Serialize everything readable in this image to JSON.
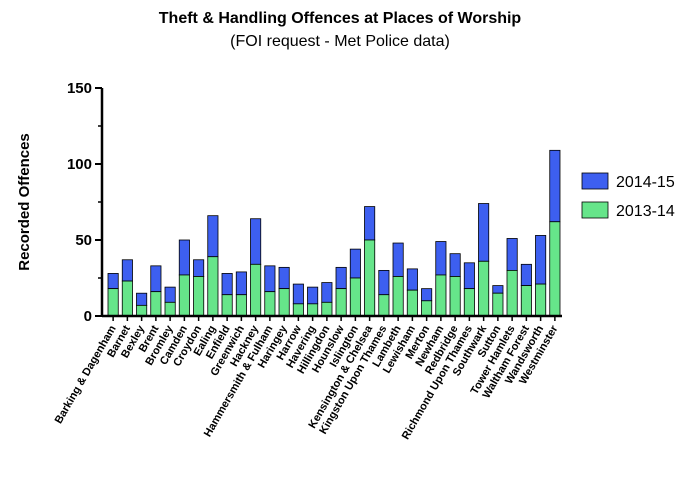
{
  "chart_data": {
    "type": "bar",
    "stacked": true,
    "title": "Theft & Handling Offences at Places of Worship",
    "subtitle": "(FOI request - Met Police data)",
    "xlabel": "",
    "ylabel": "Recorded Offences",
    "ylim": [
      0,
      150
    ],
    "yticks": [
      0,
      50,
      100,
      150
    ],
    "grid": false,
    "legend_position": "right",
    "categories": [
      "Barking & Dagenham",
      "Barnet",
      "Bexley",
      "Brent",
      "Bromley",
      "Camden",
      "Croydon",
      "Ealing",
      "Enfield",
      "Greenwich",
      "Hackney",
      "Hammersmith & Fulham",
      "Haringey",
      "Harrow",
      "Havering",
      "Hillingdon",
      "Hounslow",
      "Islington",
      "Kensington & Chelsea",
      "Kingston Upon Thames",
      "Lambeth",
      "Lewisham",
      "Merton",
      "Newham",
      "Redbridge",
      "Richmond Upon Thames",
      "Southwark",
      "Sutton",
      "Tower Hamlets",
      "Waltham Forest",
      "Wandsworth",
      "Westminster"
    ],
    "series": [
      {
        "name": "2013-14",
        "color": "#66e58a",
        "values": [
          18,
          23,
          7,
          16,
          9,
          27,
          26,
          39,
          14,
          14,
          34,
          16,
          18,
          8,
          8,
          9,
          18,
          25,
          50,
          14,
          26,
          17,
          10,
          27,
          26,
          18,
          36,
          15,
          30,
          20,
          21,
          62
        ]
      },
      {
        "name": "2014-15",
        "color": "#3d5ff0",
        "values": [
          10,
          14,
          8,
          17,
          10,
          23,
          11,
          27,
          14,
          15,
          30,
          17,
          14,
          13,
          11,
          13,
          14,
          19,
          22,
          16,
          22,
          14,
          8,
          22,
          15,
          17,
          38,
          5,
          21,
          14,
          32,
          47
        ]
      }
    ],
    "legend_order": [
      "2014-15",
      "2013-14"
    ]
  }
}
